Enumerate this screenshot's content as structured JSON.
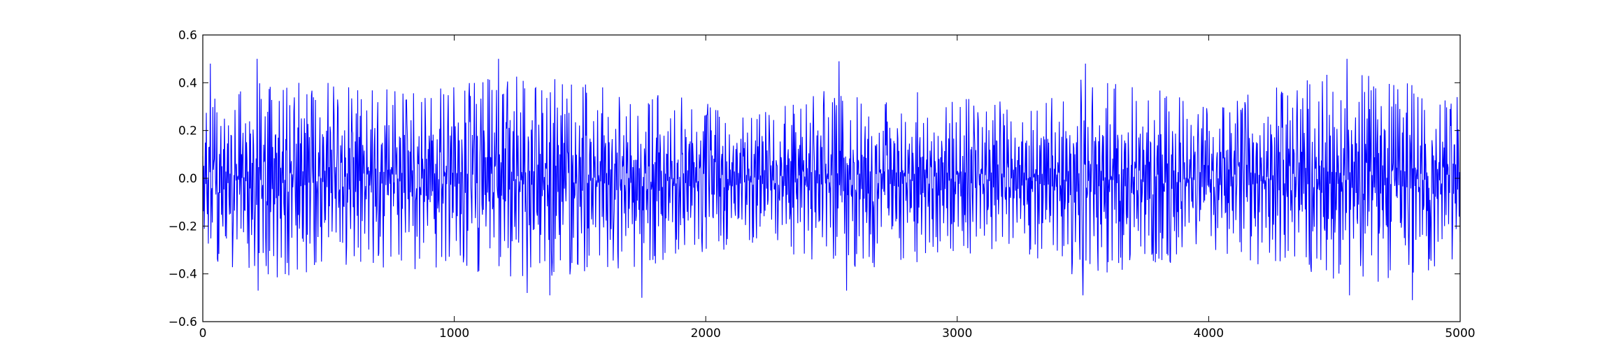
{
  "chart_data": {
    "type": "line",
    "title": "",
    "xlabel": "",
    "ylabel": "",
    "xlim": [
      0,
      5000
    ],
    "ylim": [
      -0.6,
      0.6
    ],
    "xticks": [
      0,
      1000,
      2000,
      3000,
      4000,
      5000
    ],
    "xtick_labels": [
      "0",
      "1000",
      "2000",
      "3000",
      "4000",
      "5000"
    ],
    "yticks": [
      0.6,
      0.4,
      0.2,
      0.0,
      -0.2,
      -0.4,
      -0.6
    ],
    "ytick_labels": [
      "0.6",
      "0.4",
      "0.2",
      "0.0",
      "−0.2",
      "−0.4",
      "−0.6"
    ],
    "grid": false,
    "legend": "none",
    "series": [
      {
        "color": "#0000ff",
        "n_points": 5000,
        "description": "dense oscillating signal, approx. zero mean, peaks ~±0.5",
        "envelope": {
          "x": [
            0,
            250,
            500,
            750,
            1000,
            1250,
            1500,
            1750,
            2000,
            2250,
            2500,
            2750,
            3000,
            3250,
            3500,
            3750,
            4000,
            4250,
            4500,
            4750,
            5000
          ],
          "amplitude": [
            0.38,
            0.4,
            0.38,
            0.36,
            0.37,
            0.42,
            0.38,
            0.36,
            0.3,
            0.27,
            0.36,
            0.36,
            0.32,
            0.3,
            0.4,
            0.38,
            0.3,
            0.36,
            0.42,
            0.42,
            0.32
          ]
        },
        "peaks": [
          {
            "x": 30,
            "y": 0.48
          },
          {
            "x": 215,
            "y": 0.5
          },
          {
            "x": 220,
            "y": -0.47
          },
          {
            "x": 1175,
            "y": 0.5
          },
          {
            "x": 1290,
            "y": -0.48
          },
          {
            "x": 1380,
            "y": -0.49
          },
          {
            "x": 1745,
            "y": -0.5
          },
          {
            "x": 2530,
            "y": 0.49
          },
          {
            "x": 2560,
            "y": -0.47
          },
          {
            "x": 3510,
            "y": 0.48
          },
          {
            "x": 3500,
            "y": -0.49
          },
          {
            "x": 4550,
            "y": 0.5
          },
          {
            "x": 4560,
            "y": -0.49
          },
          {
            "x": 4810,
            "y": -0.51
          }
        ]
      }
    ]
  }
}
